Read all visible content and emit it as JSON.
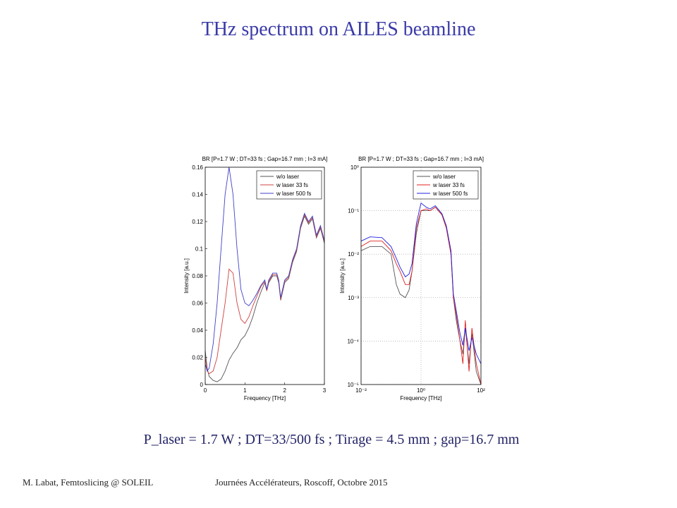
{
  "slide": {
    "title": "THz spectrum on AILES beamline",
    "caption": "P_laser = 1.7 W ; DT=33/500 fs ; Tirage = 4.5 mm ; gap=16.7 mm",
    "footer_left": "M. Labat, Femtoslicing @ SOLEIL",
    "footer_right": "Journées Accélérateurs, Roscoff, Octobre 2015"
  },
  "chart_data": [
    {
      "type": "line",
      "title": "BR [P=1.7 W ; DT=33 fs ; Gap=16.7 mm ; I=3 mA]",
      "x_label": "Frequency [THz]",
      "y_label": "Intensity [a.u.]",
      "xlim": [
        0,
        3
      ],
      "xticks": [
        0,
        1,
        2,
        3
      ],
      "ylim": [
        0,
        0.16
      ],
      "yticks": [
        0,
        0.02,
        0.04,
        0.06,
        0.08,
        0.1,
        0.12,
        0.14,
        0.16
      ],
      "grid": false,
      "legend": "upper right",
      "x": [
        0,
        0.05,
        0.1,
        0.2,
        0.3,
        0.4,
        0.5,
        0.6,
        0.7,
        0.8,
        0.9,
        1.0,
        1.1,
        1.2,
        1.3,
        1.4,
        1.5,
        1.55,
        1.6,
        1.7,
        1.8,
        1.85,
        1.9,
        2.0,
        2.1,
        2.2,
        2.3,
        2.4,
        2.5,
        2.6,
        2.7,
        2.8,
        2.9,
        3.0
      ],
      "series": [
        {
          "name": "w/o laser",
          "color": "#555555",
          "values": [
            0.025,
            0.012,
            0.006,
            0.003,
            0.002,
            0.004,
            0.01,
            0.018,
            0.023,
            0.027,
            0.033,
            0.036,
            0.042,
            0.05,
            0.06,
            0.068,
            0.075,
            0.069,
            0.075,
            0.08,
            0.08,
            0.075,
            0.062,
            0.075,
            0.078,
            0.09,
            0.098,
            0.115,
            0.124,
            0.118,
            0.122,
            0.108,
            0.115,
            0.104
          ]
        },
        {
          "name": "w laser 33 fs",
          "color": "#d04040",
          "values": [
            0.02,
            0.01,
            0.008,
            0.01,
            0.02,
            0.04,
            0.06,
            0.085,
            0.082,
            0.06,
            0.048,
            0.045,
            0.05,
            0.058,
            0.065,
            0.072,
            0.076,
            0.069,
            0.076,
            0.081,
            0.081,
            0.076,
            0.063,
            0.076,
            0.079,
            0.091,
            0.099,
            0.116,
            0.125,
            0.119,
            0.123,
            0.109,
            0.116,
            0.105
          ]
        },
        {
          "name": "w laser 500 fs",
          "color": "#4040c8",
          "values": [
            0.015,
            0.01,
            0.012,
            0.03,
            0.06,
            0.1,
            0.14,
            0.16,
            0.14,
            0.1,
            0.07,
            0.06,
            0.058,
            0.062,
            0.067,
            0.073,
            0.077,
            0.07,
            0.077,
            0.082,
            0.082,
            0.077,
            0.064,
            0.077,
            0.08,
            0.092,
            0.1,
            0.117,
            0.126,
            0.12,
            0.124,
            0.11,
            0.117,
            0.106
          ]
        }
      ]
    },
    {
      "type": "line",
      "title": "BR [P=1.7 W ; DT=33 fs ; Gap=16.7 mm ; I=3 mA]",
      "x_label": "Frequency [THz]",
      "y_label": "Intensity [a.u.]",
      "xlog": true,
      "ylog": true,
      "xlim": [
        0.01,
        100
      ],
      "xticks": [
        {
          "value": 0.01,
          "label": "10⁻²"
        },
        {
          "value": 1,
          "label": "10⁰"
        },
        {
          "value": 100,
          "label": "10²"
        }
      ],
      "ylim": [
        1e-05,
        1
      ],
      "yticks": [
        {
          "value": 1e-05,
          "label": "10⁻⁵"
        },
        {
          "value": 0.0001,
          "label": "10⁻⁴"
        },
        {
          "value": 0.001,
          "label": "10⁻³"
        },
        {
          "value": 0.01,
          "label": "10⁻²"
        },
        {
          "value": 0.1,
          "label": "10⁻¹"
        },
        {
          "value": 1,
          "label": "10⁰"
        }
      ],
      "grid": true,
      "legend": "upper right",
      "x": [
        0.01,
        0.02,
        0.05,
        0.1,
        0.15,
        0.2,
        0.3,
        0.4,
        0.5,
        0.7,
        1,
        1.5,
        2,
        3,
        5,
        7,
        10,
        12,
        15,
        20,
        25,
        30,
        40,
        50,
        70,
        100
      ],
      "series": [
        {
          "name": "w/o laser",
          "color": "#555555",
          "values": [
            0.012,
            0.015,
            0.015,
            0.01,
            0.002,
            0.0012,
            0.001,
            0.0015,
            0.004,
            0.03,
            0.1,
            0.1,
            0.1,
            0.12,
            0.08,
            0.04,
            0.01,
            0.001,
            0.0003,
            0.0001,
            5e-05,
            0.0002,
            3e-05,
            0.00015,
            2e-05,
            1e-05
          ]
        },
        {
          "name": "w laser 33 fs",
          "color": "#e02020",
          "values": [
            0.015,
            0.02,
            0.02,
            0.012,
            0.006,
            0.004,
            0.002,
            0.002,
            0.004,
            0.04,
            0.1,
            0.11,
            0.1,
            0.12,
            0.08,
            0.04,
            0.01,
            0.001,
            0.0004,
            0.0001,
            3e-05,
            0.0003,
            2e-05,
            0.0002,
            3e-05,
            1e-05
          ]
        },
        {
          "name": "w laser 500 fs",
          "color": "#2020e0",
          "values": [
            0.02,
            0.025,
            0.024,
            0.015,
            0.008,
            0.005,
            0.003,
            0.0035,
            0.006,
            0.05,
            0.15,
            0.12,
            0.11,
            0.13,
            0.085,
            0.045,
            0.012,
            0.0012,
            0.0005,
            0.00015,
            8e-05,
            0.0002,
            6e-05,
            0.00012,
            5e-05,
            3e-05
          ]
        }
      ]
    }
  ]
}
